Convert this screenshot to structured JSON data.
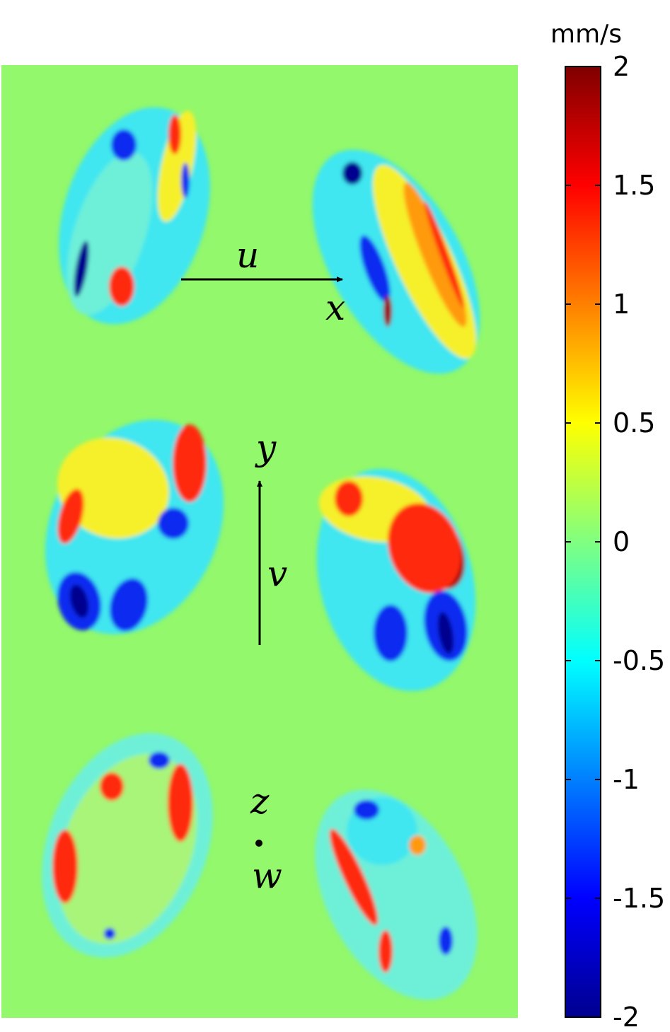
{
  "chart_data": {
    "type": "heatmap",
    "title": "",
    "colormap": "jet",
    "background_color": "#93f86b",
    "colorbar": {
      "unit": "mm/s",
      "range": [
        -2,
        2
      ],
      "ticks": [
        {
          "value": 2,
          "label": "2"
        },
        {
          "value": 1.5,
          "label": "1.5"
        },
        {
          "value": 1,
          "label": "1"
        },
        {
          "value": 0.5,
          "label": "0.5"
        },
        {
          "value": 0,
          "label": "0"
        },
        {
          "value": -0.5,
          "label": "-0.5"
        },
        {
          "value": -1,
          "label": "-1"
        },
        {
          "value": -1.5,
          "label": "-1.5"
        },
        {
          "value": -2,
          "label": "-2"
        }
      ]
    },
    "annotations": {
      "u": "u",
      "x": "x",
      "y": "y",
      "v": "v",
      "z": "z",
      "w": "w"
    },
    "panels": [
      {
        "component": "u",
        "row": 1
      },
      {
        "component": "v",
        "row": 2
      },
      {
        "component": "w",
        "row": 3
      }
    ]
  }
}
